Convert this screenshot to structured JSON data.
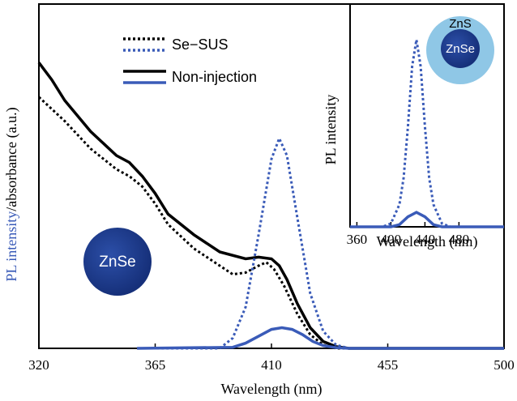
{
  "chart_data": [
    {
      "type": "line",
      "xlabel": "Wavelength (nm)",
      "ylabel": [
        {
          "text": "PL intensity",
          "color": "#3a5bb8"
        },
        {
          "text": "/absorbance (a.u.)",
          "color": "#000000"
        }
      ],
      "xlim": [
        320,
        500
      ],
      "xticks": [
        320,
        365,
        410,
        455,
        500
      ],
      "ylim": [
        0,
        100
      ],
      "annotations": [
        "ZnSe"
      ],
      "series": [
        {
          "name": "Se−SUS",
          "color": "#000000",
          "dash": "dotted",
          "x": [
            320,
            330,
            340,
            350,
            355,
            360,
            365,
            370,
            380,
            390,
            395,
            400,
            405,
            408,
            411,
            415,
            420,
            425,
            430,
            435,
            500
          ],
          "values": [
            73,
            66,
            58,
            52,
            50,
            47,
            42,
            36,
            29,
            24,
            21.5,
            22,
            24,
            25,
            23,
            18,
            10,
            4,
            1,
            0,
            0
          ]
        },
        {
          "name": "Non-injection",
          "color": "#000000",
          "dash": "solid",
          "x": [
            320,
            325,
            330,
            340,
            350,
            355,
            360,
            365,
            370,
            380,
            390,
            400,
            405,
            410,
            413,
            416,
            420,
            425,
            430,
            435,
            440,
            500
          ],
          "values": [
            83,
            78,
            72,
            63,
            56,
            54,
            50,
            45,
            39,
            33,
            28,
            26,
            26.5,
            26,
            24,
            20,
            13,
            6,
            2,
            0.5,
            0,
            0
          ]
        },
        {
          "name": "Se−SUS",
          "color": "#3a5bb8",
          "dash": "dotted",
          "x": [
            358,
            390,
            395,
            400,
            405,
            410,
            413,
            416,
            420,
            425,
            430,
            435,
            440,
            500
          ],
          "values": [
            0,
            0,
            3,
            12,
            33,
            55,
            61,
            56,
            38,
            16,
            5,
            1,
            0,
            0
          ]
        },
        {
          "name": "Non-injection",
          "color": "#3a5bb8",
          "dash": "solid",
          "x": [
            358,
            395,
            400,
            405,
            410,
            414,
            418,
            422,
            426,
            430,
            435,
            440,
            500
          ],
          "values": [
            0,
            0.3,
            1.5,
            3.5,
            5.5,
            6,
            5.5,
            4,
            2,
            0.8,
            0.2,
            0,
            0
          ]
        }
      ]
    },
    {
      "type": "line",
      "xlabel": "Wavelength (nm)",
      "ylabel": [
        {
          "text": "PL intensity",
          "color": "#000000"
        }
      ],
      "xlim": [
        352,
        533
      ],
      "xticks": [
        360,
        400,
        440,
        480
      ],
      "ylim": [
        0,
        100
      ],
      "annotations": [
        "ZnS",
        "ZnSe"
      ],
      "series": [
        {
          "name": "Se−SUS",
          "color": "#3a5bb8",
          "dash": "dotted",
          "x": [
            352,
            390,
            400,
            410,
            415,
            420,
            425,
            430,
            435,
            440,
            445,
            450,
            460,
            470,
            533
          ],
          "values": [
            0,
            0,
            1.5,
            10,
            22,
            45,
            72,
            84,
            72,
            45,
            22,
            10,
            1.5,
            0,
            0
          ]
        },
        {
          "name": "Non-injection",
          "color": "#3a5bb8",
          "dash": "solid",
          "x": [
            352,
            400,
            410,
            420,
            430,
            440,
            450,
            460,
            533
          ],
          "values": [
            0,
            0,
            1,
            4.5,
            6.5,
            4.5,
            1,
            0,
            0
          ]
        }
      ]
    }
  ]
}
